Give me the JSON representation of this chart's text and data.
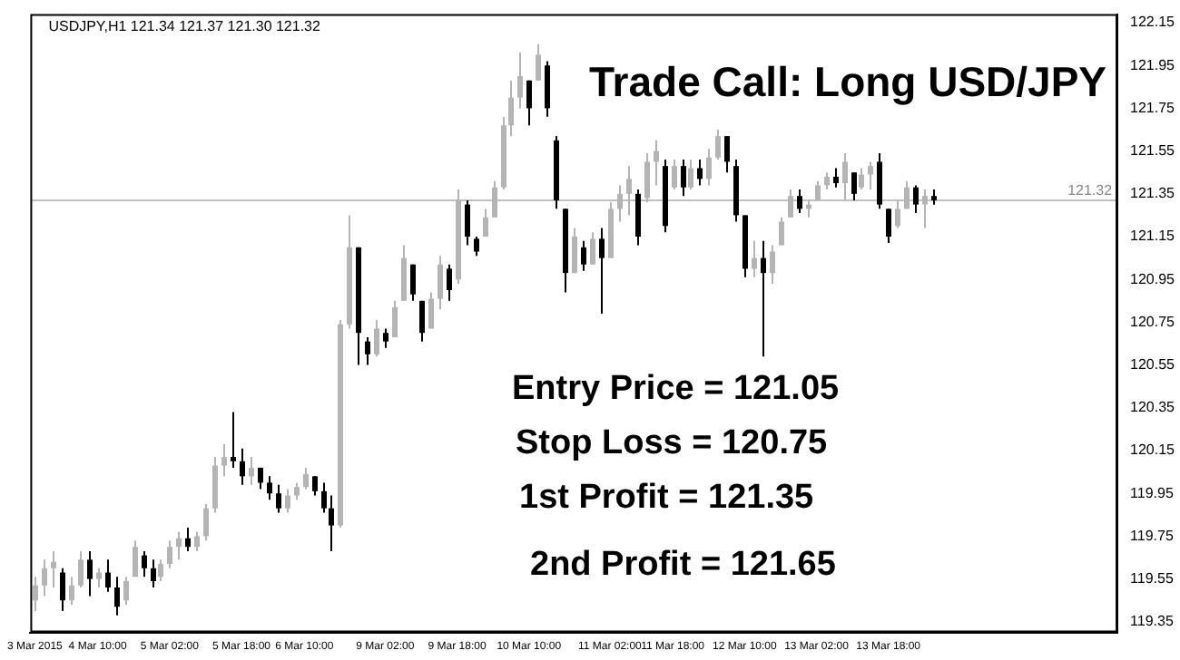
{
  "chart_data": {
    "type": "candlestick",
    "title": "Trade Call: Long USD/JPY",
    "subtitle": "USDJPY,H1 121.34 121.37 121.30 121.32",
    "annotations": [
      "Entry Price = 121.05",
      "Stop Loss = 120.75",
      "1st Profit = 121.35",
      "2nd Profit = 121.65"
    ],
    "categories": [
      "3 Mar 2015",
      null,
      null,
      null,
      null,
      null,
      null,
      "4 Mar 10:00",
      null,
      null,
      null,
      null,
      null,
      null,
      null,
      "5 Mar 02:00",
      null,
      null,
      null,
      null,
      null,
      null,
      null,
      "5 Mar 18:00",
      null,
      null,
      null,
      null,
      null,
      null,
      "6 Mar 10:00",
      null,
      null,
      null,
      null,
      null,
      null,
      null,
      null,
      "9 Mar 02:00",
      null,
      null,
      null,
      null,
      null,
      null,
      null,
      "9 Mar 18:00",
      null,
      null,
      null,
      null,
      null,
      null,
      null,
      "10 Mar 10:00",
      null,
      null,
      null,
      null,
      null,
      null,
      null,
      null,
      "11 Mar 02:00",
      null,
      null,
      null,
      null,
      null,
      null,
      "11 Mar 18:00",
      null,
      null,
      null,
      null,
      null,
      null,
      null,
      "12 Mar 10:00",
      null,
      null,
      null,
      null,
      null,
      null,
      null,
      "13 Mar 02:00",
      null,
      null,
      null,
      null,
      null,
      null,
      null,
      "13 Mar 18:00",
      null,
      null,
      null,
      null,
      null,
      null,
      null,
      null,
      null,
      null,
      null,
      null,
      null,
      null,
      null,
      null,
      null,
      null,
      null,
      null,
      null,
      null,
      null,
      null,
      null
    ],
    "ohlc": [
      [
        119.45,
        119.56,
        119.4,
        119.52
      ],
      [
        119.52,
        119.64,
        119.47,
        119.6
      ],
      [
        119.6,
        119.68,
        119.51,
        119.63
      ],
      [
        119.58,
        119.6,
        119.4,
        119.45
      ],
      [
        119.45,
        119.56,
        119.43,
        119.52
      ],
      [
        119.52,
        119.68,
        119.51,
        119.64
      ],
      [
        119.64,
        119.68,
        119.47,
        119.55
      ],
      [
        119.55,
        119.6,
        119.51,
        119.58
      ],
      [
        119.58,
        119.64,
        119.49,
        119.51
      ],
      [
        119.51,
        119.56,
        119.38,
        119.42
      ],
      [
        119.45,
        119.56,
        119.43,
        119.54
      ],
      [
        119.56,
        119.73,
        119.56,
        119.7
      ],
      [
        119.66,
        119.68,
        119.56,
        119.6
      ],
      [
        119.6,
        119.64,
        119.51,
        119.54
      ],
      [
        119.56,
        119.64,
        119.54,
        119.62
      ],
      [
        119.62,
        119.73,
        119.6,
        119.7
      ],
      [
        119.7,
        119.77,
        119.64,
        119.74
      ],
      [
        119.74,
        119.79,
        119.68,
        119.7
      ],
      [
        119.7,
        119.77,
        119.68,
        119.75
      ],
      [
        119.75,
        119.9,
        119.73,
        119.88
      ],
      [
        119.88,
        120.12,
        119.86,
        120.08
      ],
      [
        120.08,
        120.18,
        120.03,
        120.12
      ],
      [
        120.12,
        120.33,
        120.07,
        120.1
      ],
      [
        120.1,
        120.16,
        119.99,
        120.03
      ],
      [
        120.03,
        120.12,
        119.99,
        120.07
      ],
      [
        120.07,
        120.07,
        119.97,
        120.0
      ],
      [
        120.0,
        120.03,
        119.92,
        119.95
      ],
      [
        119.95,
        119.99,
        119.86,
        119.88
      ],
      [
        119.88,
        119.97,
        119.86,
        119.94
      ],
      [
        119.94,
        120.0,
        119.92,
        119.98
      ],
      [
        119.98,
        120.07,
        119.97,
        120.04
      ],
      [
        120.03,
        120.03,
        119.94,
        119.96
      ],
      [
        119.96,
        120.0,
        119.86,
        119.88
      ],
      [
        119.88,
        119.94,
        119.68,
        119.8
      ],
      [
        119.8,
        120.76,
        119.79,
        120.74
      ],
      [
        120.74,
        121.25,
        120.72,
        121.1
      ],
      [
        121.1,
        121.1,
        120.55,
        120.7
      ],
      [
        120.66,
        120.68,
        120.55,
        120.6
      ],
      [
        120.6,
        120.76,
        120.59,
        120.72
      ],
      [
        120.7,
        120.72,
        120.63,
        120.66
      ],
      [
        120.68,
        120.85,
        120.68,
        120.82
      ],
      [
        120.85,
        121.11,
        120.85,
        121.05
      ],
      [
        121.02,
        121.02,
        120.85,
        120.88
      ],
      [
        120.85,
        120.85,
        120.66,
        120.7
      ],
      [
        120.72,
        120.89,
        120.72,
        120.86
      ],
      [
        120.86,
        121.06,
        120.81,
        121.02
      ],
      [
        121.0,
        121.02,
        120.85,
        120.9
      ],
      [
        120.95,
        121.37,
        120.93,
        121.32
      ],
      [
        121.3,
        121.32,
        121.11,
        121.15
      ],
      [
        121.14,
        121.15,
        121.06,
        121.08
      ],
      [
        121.15,
        121.28,
        121.15,
        121.24
      ],
      [
        121.24,
        121.41,
        121.24,
        121.38
      ],
      [
        121.38,
        121.71,
        121.37,
        121.67
      ],
      [
        121.67,
        121.88,
        121.62,
        121.8
      ],
      [
        121.8,
        122.01,
        121.75,
        121.9
      ],
      [
        121.88,
        121.88,
        121.67,
        121.75
      ],
      [
        121.88,
        122.05,
        121.88,
        122.0
      ],
      [
        121.95,
        121.97,
        121.71,
        121.75
      ],
      [
        121.6,
        121.62,
        121.28,
        121.32
      ],
      [
        121.28,
        121.28,
        120.89,
        120.98
      ],
      [
        120.98,
        121.19,
        120.98,
        121.15
      ],
      [
        121.1,
        121.13,
        120.99,
        121.02
      ],
      [
        121.02,
        121.17,
        121.02,
        121.14
      ],
      [
        121.14,
        121.19,
        120.79,
        121.05
      ],
      [
        121.05,
        121.31,
        121.05,
        121.28
      ],
      [
        121.28,
        121.39,
        121.22,
        121.35
      ],
      [
        121.35,
        121.48,
        121.25,
        121.42
      ],
      [
        121.35,
        121.37,
        121.11,
        121.15
      ],
      [
        121.33,
        121.54,
        121.31,
        121.5
      ],
      [
        121.5,
        121.6,
        121.39,
        121.55
      ],
      [
        121.48,
        121.51,
        121.17,
        121.2
      ],
      [
        121.38,
        121.51,
        121.37,
        121.48
      ],
      [
        121.48,
        121.51,
        121.34,
        121.38
      ],
      [
        121.38,
        121.51,
        121.37,
        121.47
      ],
      [
        121.47,
        121.51,
        121.39,
        121.42
      ],
      [
        121.42,
        121.56,
        121.39,
        121.52
      ],
      [
        121.52,
        121.65,
        121.51,
        121.62
      ],
      [
        121.62,
        121.62,
        121.45,
        121.5
      ],
      [
        121.48,
        121.51,
        121.22,
        121.25
      ],
      [
        121.25,
        121.25,
        120.96,
        121.0
      ],
      [
        121.0,
        121.13,
        120.96,
        121.05
      ],
      [
        121.05,
        121.13,
        120.59,
        120.98
      ],
      [
        120.98,
        121.11,
        120.93,
        121.08
      ],
      [
        121.11,
        121.24,
        121.11,
        121.22
      ],
      [
        121.24,
        121.37,
        121.24,
        121.34
      ],
      [
        121.34,
        121.37,
        121.26,
        121.28
      ],
      [
        121.28,
        121.32,
        121.24,
        121.3
      ],
      [
        121.32,
        121.41,
        121.32,
        121.39
      ],
      [
        121.39,
        121.45,
        121.37,
        121.43
      ],
      [
        121.43,
        121.47,
        121.38,
        121.4
      ],
      [
        121.4,
        121.54,
        121.32,
        121.5
      ],
      [
        121.45,
        121.45,
        121.32,
        121.35
      ],
      [
        121.38,
        121.47,
        121.37,
        121.44
      ],
      [
        121.44,
        121.5,
        121.37,
        121.48
      ],
      [
        121.5,
        121.54,
        121.28,
        121.3
      ],
      [
        121.28,
        121.28,
        121.12,
        121.15
      ],
      [
        121.2,
        121.32,
        121.19,
        121.28
      ],
      [
        121.28,
        121.41,
        121.28,
        121.38
      ],
      [
        121.38,
        121.39,
        121.26,
        121.3
      ],
      [
        121.3,
        121.37,
        121.19,
        121.34
      ],
      [
        121.34,
        121.37,
        121.3,
        121.32
      ],
      null,
      null,
      null,
      null,
      null,
      null,
      null,
      null,
      null,
      null,
      null,
      null,
      null,
      null,
      null,
      null,
      null,
      null,
      null,
      null
    ],
    "ylim": [
      119.3,
      122.19
    ],
    "yticks": [
      119.35,
      119.55,
      119.75,
      119.95,
      120.15,
      120.35,
      120.55,
      120.75,
      120.95,
      121.15,
      121.35,
      121.55,
      121.75,
      121.95,
      122.15
    ],
    "ref_lines": [
      {
        "axis": "y",
        "value": 121.32,
        "label": "121.32",
        "color": "#c0c0c0"
      }
    ],
    "legend": false
  }
}
